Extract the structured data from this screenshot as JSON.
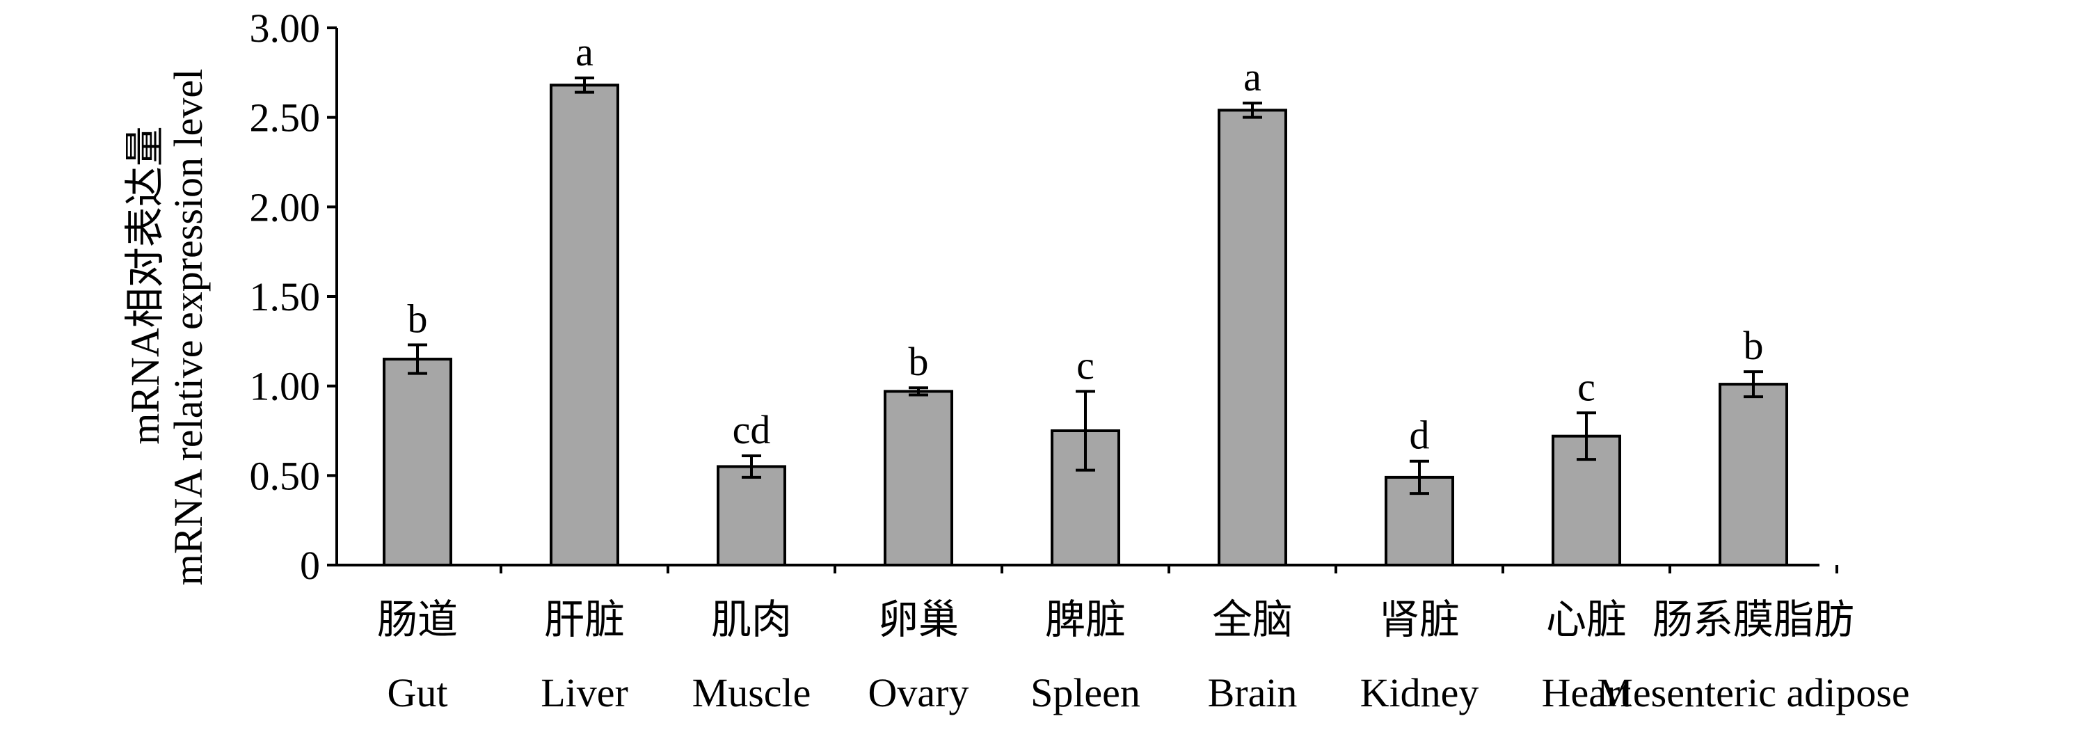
{
  "chart_data": {
    "type": "bar",
    "ylabel_lines": [
      "mRNA相对表达量",
      "mRNA relative expression level"
    ],
    "ylim": [
      0,
      3.0
    ],
    "yticks": [
      "0",
      "0.50",
      "1.00",
      "1.50",
      "2.00",
      "2.50",
      "3.00"
    ],
    "ytick_values": [
      0,
      0.5,
      1.0,
      1.5,
      2.0,
      2.5,
      3.0
    ],
    "categories_zh": [
      "肠道",
      "肝脏",
      "肌肉",
      "卵巢",
      "脾脏",
      "全脑",
      "肾脏",
      "心脏",
      "肠系膜脂肪"
    ],
    "categories_en": [
      "Gut",
      "Liver",
      "Muscle",
      "Ovary",
      "Spleen",
      "Brain",
      "Kidney",
      "Heart",
      "Mesenteric adipose"
    ],
    "values": [
      1.15,
      2.68,
      0.55,
      0.97,
      0.75,
      2.54,
      0.49,
      0.72,
      1.01
    ],
    "errors": [
      0.08,
      0.04,
      0.06,
      0.02,
      0.22,
      0.04,
      0.09,
      0.13,
      0.07
    ],
    "significance": [
      "b",
      "a",
      "cd",
      "b",
      "c",
      "a",
      "d",
      "c",
      "b"
    ],
    "bar_color": "#a6a6a6",
    "grid": false
  }
}
